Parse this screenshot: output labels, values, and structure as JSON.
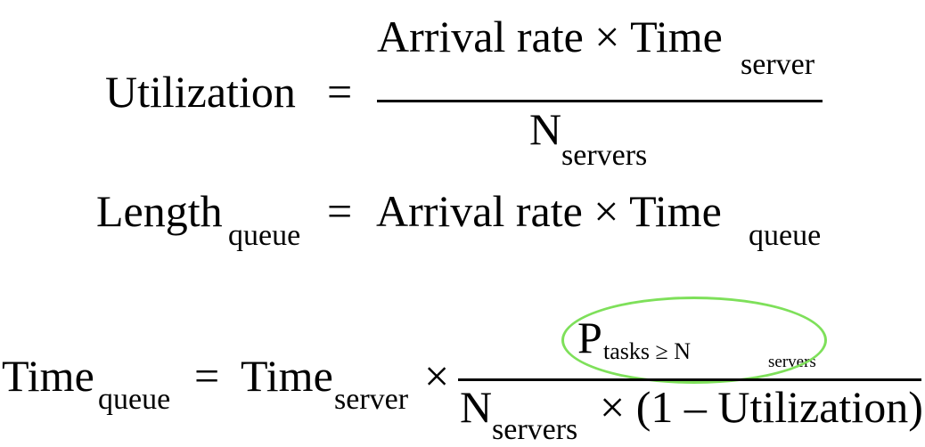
{
  "highlight_color": "#7ee05a",
  "equation1": {
    "lhs": "Utilization",
    "equals": "=",
    "numerator_main": "Arrival rate × Time",
    "numerator_sub": "server",
    "denominator_main": "N",
    "denominator_sub": "servers"
  },
  "equation2": {
    "lhs_main": "Length",
    "lhs_sub": "queue",
    "equals": "=",
    "rhs_main": "Arrival rate × Time",
    "rhs_sub": "queue"
  },
  "equation3": {
    "lhs_main": "Time",
    "lhs_sub": "queue",
    "equals": "=",
    "term_main": "Time",
    "term_sub": "server",
    "times": "×",
    "numerator_p": "P",
    "numerator_p_sub": "tasks ≥ N",
    "numerator_p_subsub": "servers",
    "denominator_main": "N",
    "denominator_sub": "servers",
    "denominator_rest": "× (1 – Utilization)"
  }
}
